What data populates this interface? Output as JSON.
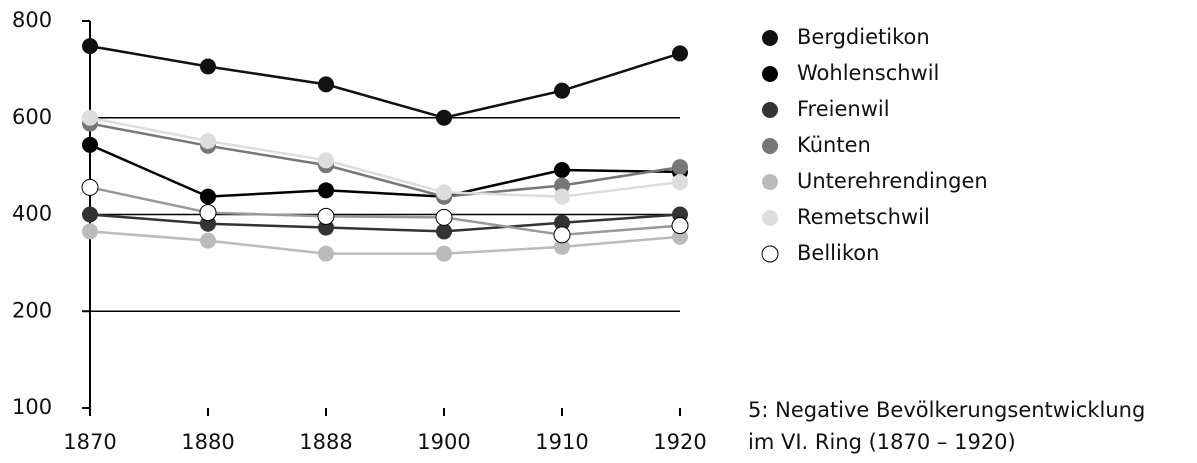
{
  "chart_data": {
    "type": "line",
    "categories": [
      "1870",
      "1880",
      "1888",
      "1900",
      "1910",
      "1920"
    ],
    "ylim": [
      100,
      800
    ],
    "yticks": [
      100,
      200,
      400,
      600,
      800
    ],
    "ytick_spacing": "even",
    "grid": true,
    "legend": "right",
    "series": [
      {
        "name": "Bergdietikon",
        "color": "#111111",
        "values": [
          748,
          706,
          669,
          600,
          656,
          733
        ]
      },
      {
        "name": "Wohlenschwil",
        "color": "#000000",
        "values": [
          544,
          437,
          450,
          437,
          492,
          488
        ]
      },
      {
        "name": "Freienwil",
        "color": "#333333",
        "values": [
          400,
          381,
          373,
          365,
          383,
          400
        ]
      },
      {
        "name": "Künten",
        "color": "#777777",
        "values": [
          588,
          542,
          502,
          437,
          460,
          498
        ]
      },
      {
        "name": "Unterehrendingen",
        "color": "#bbbbbb",
        "values": [
          365,
          346,
          319,
          319,
          333,
          354
        ]
      },
      {
        "name": "Remetschwil",
        "color": "#dddddd",
        "values": [
          600,
          552,
          512,
          446,
          437,
          467
        ]
      },
      {
        "name": "Bellikon",
        "color": "#ffffff",
        "values": [
          456,
          404,
          396,
          394,
          358,
          377
        ]
      }
    ],
    "caption": [
      "5: Negative Bevölkerungsentwicklung",
      "im VI. Ring (1870 – 1920)"
    ]
  }
}
